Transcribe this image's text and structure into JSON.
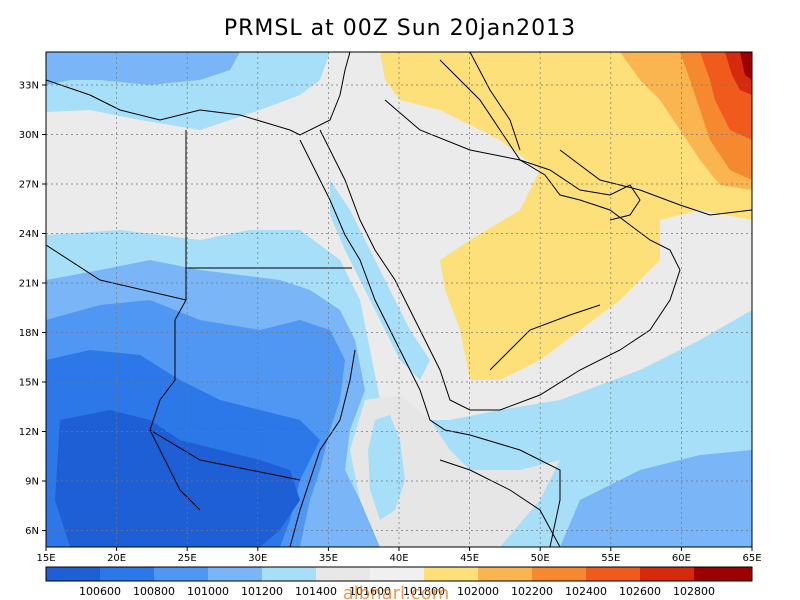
{
  "title": "PRMSL at 00Z Sun 20jan2013",
  "chart_data": {
    "type": "heatmap",
    "variable": "PRMSL",
    "time": "00Z Sun 20jan2013",
    "lon_range": [
      15,
      65
    ],
    "lat_range": [
      5,
      35
    ],
    "x_ticks": [
      "15E",
      "20E",
      "25E",
      "30E",
      "35E",
      "40E",
      "45E",
      "50E",
      "55E",
      "60E",
      "65E"
    ],
    "y_ticks": [
      "6N",
      "9N",
      "12N",
      "15N",
      "18N",
      "21N",
      "24N",
      "27N",
      "30N",
      "33N"
    ],
    "grid": "dotted",
    "colorbar": {
      "levels": [
        "100600",
        "100800",
        "101000",
        "101200",
        "101400",
        "101600",
        "101800",
        "102000",
        "102200",
        "102400",
        "102600",
        "102800"
      ],
      "colors": [
        "#1f5fd6",
        "#2c78e8",
        "#4f97f2",
        "#7ab6f7",
        "#a7def8",
        "#e8e8e8",
        "#f0f0f0",
        "#fde07a",
        "#fbb550",
        "#f6892f",
        "#f05a1c",
        "#d52a0c",
        "#9c0000"
      ]
    }
  },
  "watermark": "albnarl.com"
}
